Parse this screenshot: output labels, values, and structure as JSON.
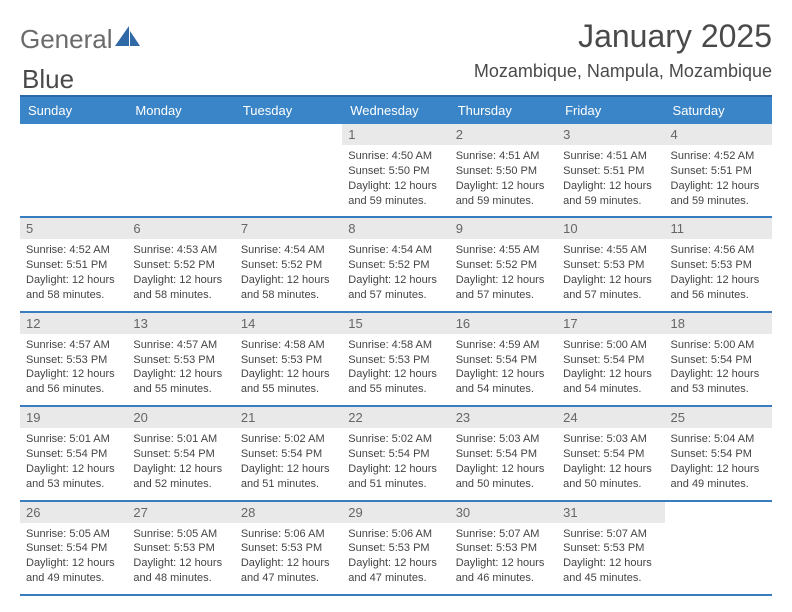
{
  "brand": {
    "part1": "General",
    "part2": "Blue"
  },
  "title": "January 2025",
  "location": "Mozambique, Nampula, Mozambique",
  "day_labels": [
    "Sunday",
    "Monday",
    "Tuesday",
    "Wednesday",
    "Thursday",
    "Friday",
    "Saturday"
  ],
  "colors": {
    "header_bg": "#3a85c8",
    "accent_border": "#3a7cc0",
    "daynum_bg": "#e9e9e9",
    "text": "#4a4a4a"
  },
  "weeks": [
    [
      {
        "n": "",
        "sr": "",
        "ss": "",
        "dl": ""
      },
      {
        "n": "",
        "sr": "",
        "ss": "",
        "dl": ""
      },
      {
        "n": "",
        "sr": "",
        "ss": "",
        "dl": ""
      },
      {
        "n": "1",
        "sr": "4:50 AM",
        "ss": "5:50 PM",
        "dl": "12 hours and 59 minutes."
      },
      {
        "n": "2",
        "sr": "4:51 AM",
        "ss": "5:50 PM",
        "dl": "12 hours and 59 minutes."
      },
      {
        "n": "3",
        "sr": "4:51 AM",
        "ss": "5:51 PM",
        "dl": "12 hours and 59 minutes."
      },
      {
        "n": "4",
        "sr": "4:52 AM",
        "ss": "5:51 PM",
        "dl": "12 hours and 59 minutes."
      }
    ],
    [
      {
        "n": "5",
        "sr": "4:52 AM",
        "ss": "5:51 PM",
        "dl": "12 hours and 58 minutes."
      },
      {
        "n": "6",
        "sr": "4:53 AM",
        "ss": "5:52 PM",
        "dl": "12 hours and 58 minutes."
      },
      {
        "n": "7",
        "sr": "4:54 AM",
        "ss": "5:52 PM",
        "dl": "12 hours and 58 minutes."
      },
      {
        "n": "8",
        "sr": "4:54 AM",
        "ss": "5:52 PM",
        "dl": "12 hours and 57 minutes."
      },
      {
        "n": "9",
        "sr": "4:55 AM",
        "ss": "5:52 PM",
        "dl": "12 hours and 57 minutes."
      },
      {
        "n": "10",
        "sr": "4:55 AM",
        "ss": "5:53 PM",
        "dl": "12 hours and 57 minutes."
      },
      {
        "n": "11",
        "sr": "4:56 AM",
        "ss": "5:53 PM",
        "dl": "12 hours and 56 minutes."
      }
    ],
    [
      {
        "n": "12",
        "sr": "4:57 AM",
        "ss": "5:53 PM",
        "dl": "12 hours and 56 minutes."
      },
      {
        "n": "13",
        "sr": "4:57 AM",
        "ss": "5:53 PM",
        "dl": "12 hours and 55 minutes."
      },
      {
        "n": "14",
        "sr": "4:58 AM",
        "ss": "5:53 PM",
        "dl": "12 hours and 55 minutes."
      },
      {
        "n": "15",
        "sr": "4:58 AM",
        "ss": "5:53 PM",
        "dl": "12 hours and 55 minutes."
      },
      {
        "n": "16",
        "sr": "4:59 AM",
        "ss": "5:54 PM",
        "dl": "12 hours and 54 minutes."
      },
      {
        "n": "17",
        "sr": "5:00 AM",
        "ss": "5:54 PM",
        "dl": "12 hours and 54 minutes."
      },
      {
        "n": "18",
        "sr": "5:00 AM",
        "ss": "5:54 PM",
        "dl": "12 hours and 53 minutes."
      }
    ],
    [
      {
        "n": "19",
        "sr": "5:01 AM",
        "ss": "5:54 PM",
        "dl": "12 hours and 53 minutes."
      },
      {
        "n": "20",
        "sr": "5:01 AM",
        "ss": "5:54 PM",
        "dl": "12 hours and 52 minutes."
      },
      {
        "n": "21",
        "sr": "5:02 AM",
        "ss": "5:54 PM",
        "dl": "12 hours and 51 minutes."
      },
      {
        "n": "22",
        "sr": "5:02 AM",
        "ss": "5:54 PM",
        "dl": "12 hours and 51 minutes."
      },
      {
        "n": "23",
        "sr": "5:03 AM",
        "ss": "5:54 PM",
        "dl": "12 hours and 50 minutes."
      },
      {
        "n": "24",
        "sr": "5:03 AM",
        "ss": "5:54 PM",
        "dl": "12 hours and 50 minutes."
      },
      {
        "n": "25",
        "sr": "5:04 AM",
        "ss": "5:54 PM",
        "dl": "12 hours and 49 minutes."
      }
    ],
    [
      {
        "n": "26",
        "sr": "5:05 AM",
        "ss": "5:54 PM",
        "dl": "12 hours and 49 minutes."
      },
      {
        "n": "27",
        "sr": "5:05 AM",
        "ss": "5:53 PM",
        "dl": "12 hours and 48 minutes."
      },
      {
        "n": "28",
        "sr": "5:06 AM",
        "ss": "5:53 PM",
        "dl": "12 hours and 47 minutes."
      },
      {
        "n": "29",
        "sr": "5:06 AM",
        "ss": "5:53 PM",
        "dl": "12 hours and 47 minutes."
      },
      {
        "n": "30",
        "sr": "5:07 AM",
        "ss": "5:53 PM",
        "dl": "12 hours and 46 minutes."
      },
      {
        "n": "31",
        "sr": "5:07 AM",
        "ss": "5:53 PM",
        "dl": "12 hours and 45 minutes."
      },
      {
        "n": "",
        "sr": "",
        "ss": "",
        "dl": ""
      }
    ]
  ],
  "labels": {
    "sunrise": "Sunrise:",
    "sunset": "Sunset:",
    "daylight": "Daylight:"
  }
}
